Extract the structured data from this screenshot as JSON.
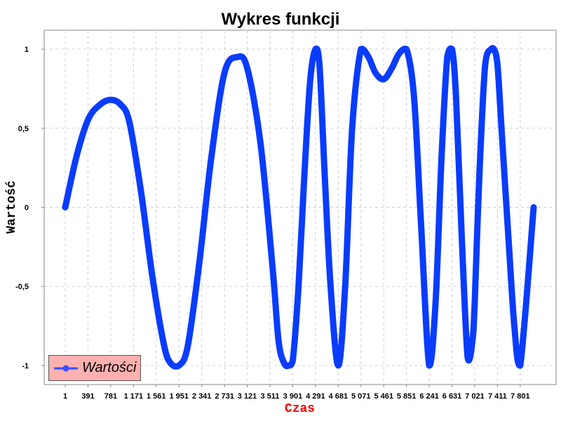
{
  "chart_data": {
    "type": "line",
    "title": "Wykres funkcji",
    "xlabel": "Czas",
    "ylabel": "Wartość",
    "xlim": [
      1,
      8031
    ],
    "ylim": [
      -1.12,
      1.12
    ],
    "grid": true,
    "legend_position": "bottom-left",
    "x_ticks": [
      "1",
      "391",
      "781",
      "1 171",
      "1 561",
      "1 951",
      "2 341",
      "2 731",
      "3 121",
      "3 511",
      "3 901",
      "4 291",
      "4 681",
      "5 071",
      "5 461",
      "5 851",
      "6 241",
      "6 631",
      "7 021",
      "7 411",
      "7 801"
    ],
    "y_ticks": [
      "1",
      "0,5",
      "0",
      "-0,5",
      "-1"
    ],
    "y_tick_values": [
      1,
      0.5,
      0,
      -0.5,
      -1
    ],
    "series": [
      {
        "name": "Wartości",
        "color": "#0a3cff",
        "x": [
          1,
          200,
          400,
          600,
          781,
          950,
          1100,
          1300,
          1500,
          1700,
          1820,
          1951,
          2100,
          2300,
          2500,
          2731,
          2950,
          3121,
          3350,
          3560,
          3660,
          3760,
          3830,
          3901,
          4000,
          4100,
          4200,
          4291,
          4360,
          4450,
          4550,
          4681,
          4800,
          4920,
          5071,
          5200,
          5320,
          5461,
          5600,
          5720,
          5851,
          5980,
          6100,
          6241,
          6350,
          6450,
          6550,
          6631,
          6700,
          6800,
          6900,
          6980,
          7021,
          7100,
          7200,
          7300,
          7350,
          7411,
          7480,
          7600,
          7700,
          7801,
          8031
        ],
        "y": [
          0,
          0.33,
          0.56,
          0.65,
          0.68,
          0.65,
          0.54,
          0.1,
          -0.45,
          -0.88,
          -0.99,
          -1,
          -0.88,
          -0.35,
          0.3,
          0.85,
          0.95,
          0.88,
          0.4,
          -0.4,
          -0.85,
          -0.99,
          -1,
          -0.97,
          -0.5,
          0.2,
          0.8,
          1,
          0.9,
          0.2,
          -0.5,
          -1,
          -0.5,
          0.5,
          1,
          0.95,
          0.85,
          0.81,
          0.88,
          0.97,
          1,
          0.7,
          -0.1,
          -1,
          -0.6,
          0.3,
          0.95,
          1,
          0.7,
          -0.2,
          -0.95,
          -0.85,
          -0.6,
          0.2,
          0.9,
          1,
          1,
          0.9,
          0.5,
          -0.2,
          -0.75,
          -1,
          0
        ]
      }
    ]
  }
}
